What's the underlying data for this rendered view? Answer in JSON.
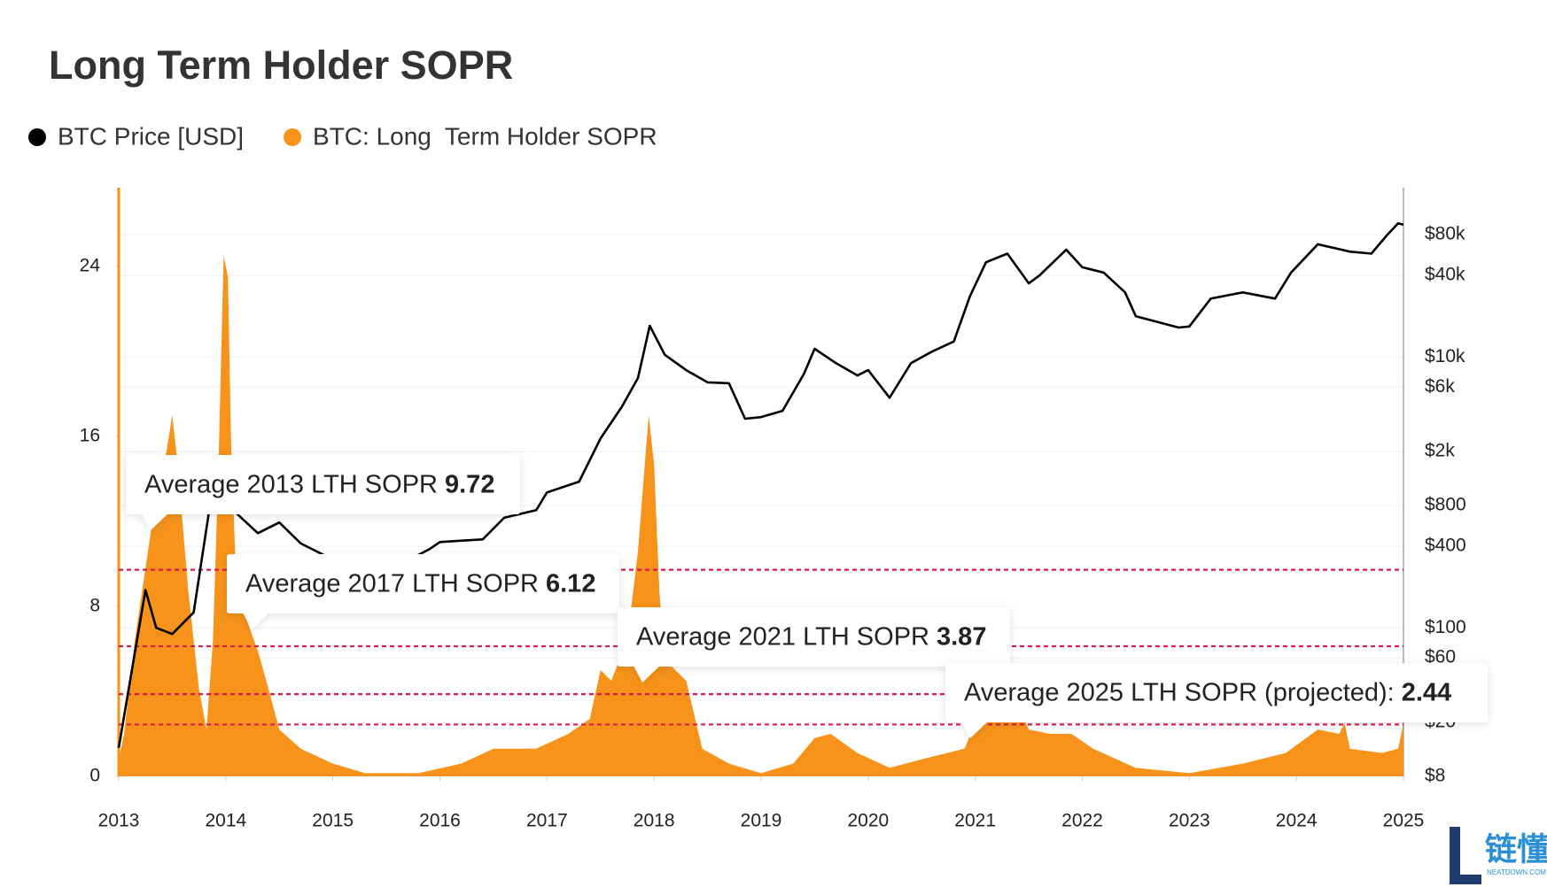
{
  "chart_data": {
    "type": "area-line",
    "title": "Long Term Holder SOPR",
    "xlim": [
      2013,
      2025
    ],
    "xticks": [
      2013,
      2014,
      2015,
      2016,
      2017,
      2018,
      2019,
      2020,
      2021,
      2022,
      2023,
      2024,
      2025
    ],
    "ylim": [
      0,
      27.7
    ],
    "yticks": [
      0,
      8,
      16,
      24
    ],
    "y2lim": [
      8,
      178000
    ],
    "y2log": true,
    "y2ticks": [
      {
        "value": 8,
        "label": "$8"
      },
      {
        "value": 20,
        "label": "$20"
      },
      {
        "value": 60,
        "label": "$60"
      },
      {
        "value": 100,
        "label": "$100"
      },
      {
        "value": 400,
        "label": "$400"
      },
      {
        "value": 800,
        "label": "$800"
      },
      {
        "value": 2000,
        "label": "$2k"
      },
      {
        "value": 6000,
        "label": "$6k"
      },
      {
        "value": 10000,
        "label": "$10k"
      },
      {
        "value": 40000,
        "label": "$40k"
      },
      {
        "value": 80000,
        "label": "$80k"
      }
    ],
    "grid": true,
    "series": [
      {
        "name": "BTC Price [USD]",
        "color": "#000000",
        "axis": "y2",
        "kind": "line",
        "x": [
          2013.0,
          2013.25,
          2013.35,
          2013.5,
          2013.7,
          2013.87,
          2013.95,
          2014.1,
          2014.3,
          2014.5,
          2014.7,
          2014.9,
          2015.1,
          2015.5,
          2015.9,
          2016.0,
          2016.4,
          2016.6,
          2016.9,
          2017.0,
          2017.3,
          2017.5,
          2017.7,
          2017.85,
          2017.96,
          2018.1,
          2018.3,
          2018.5,
          2018.7,
          2018.85,
          2019.0,
          2019.2,
          2019.4,
          2019.5,
          2019.7,
          2019.9,
          2020.0,
          2020.2,
          2020.4,
          2020.6,
          2020.8,
          2020.95,
          2021.1,
          2021.3,
          2021.5,
          2021.6,
          2021.85,
          2022.0,
          2022.2,
          2022.4,
          2022.5,
          2022.9,
          2023.0,
          2023.2,
          2023.5,
          2023.8,
          2023.95,
          2024.2,
          2024.5,
          2024.7,
          2024.85,
          2024.95,
          2025.0
        ],
        "values": [
          13,
          190,
          100,
          90,
          130,
          990,
          800,
          700,
          500,
          600,
          420,
          350,
          250,
          260,
          380,
          430,
          450,
          650,
          740,
          1000,
          1200,
          2500,
          4300,
          7000,
          17000,
          10400,
          8000,
          6500,
          6400,
          3500,
          3600,
          4000,
          7500,
          11500,
          9000,
          7300,
          8000,
          5000,
          9000,
          11000,
          13000,
          28000,
          50000,
          58000,
          35000,
          40000,
          62000,
          46000,
          42000,
          30000,
          20000,
          16500,
          16800,
          27000,
          30000,
          27000,
          42000,
          68000,
          60000,
          58000,
          80000,
          97000,
          95000
        ]
      },
      {
        "name": "BTC: Long  Term Holder SOPR",
        "color": "#f7931a",
        "kind": "area",
        "x": [
          2013.0,
          2013.05,
          2013.15,
          2013.3,
          2013.4,
          2013.45,
          2013.5,
          2013.55,
          2013.65,
          2013.75,
          2013.82,
          2013.88,
          2013.93,
          2013.98,
          2014.02,
          2014.05,
          2014.1,
          2014.2,
          2014.3,
          2014.4,
          2014.5,
          2014.7,
          2015.0,
          2015.3,
          2015.8,
          2016.2,
          2016.5,
          2016.9,
          2017.2,
          2017.4,
          2017.5,
          2017.6,
          2017.75,
          2017.85,
          2017.95,
          2018.0,
          2018.05,
          2018.1,
          2018.3,
          2018.45,
          2018.7,
          2019.0,
          2019.3,
          2019.5,
          2019.65,
          2019.9,
          2020.2,
          2020.5,
          2020.9,
          2021.0,
          2021.1,
          2021.3,
          2021.5,
          2021.7,
          2021.9,
          2022.1,
          2022.5,
          2023.0,
          2023.5,
          2023.9,
          2024.2,
          2024.4,
          2024.45,
          2024.5,
          2024.8,
          2024.95,
          2025.0
        ],
        "values": [
          0.8,
          2,
          6.4,
          11.5,
          14.2,
          15.4,
          17,
          14.7,
          8.7,
          4.1,
          2.2,
          6.4,
          14.3,
          24.5,
          23.5,
          15.6,
          8.7,
          7.3,
          5.9,
          4.1,
          2.2,
          1.3,
          0.6,
          0.15,
          0.15,
          0.6,
          1.3,
          1.3,
          2,
          2.7,
          5,
          4.5,
          6.4,
          10.6,
          17,
          14.7,
          8.7,
          5.5,
          4.5,
          1.3,
          0.6,
          0.15,
          0.6,
          1.8,
          2,
          1.1,
          0.4,
          0.8,
          1.3,
          2.5,
          4.1,
          4.5,
          2.2,
          2,
          2,
          1.3,
          0.4,
          0.15,
          0.6,
          1.1,
          2.2,
          2,
          2.5,
          1.3,
          1.1,
          1.3,
          2.5
        ]
      }
    ],
    "annotations": [
      {
        "text": "Average 2013 LTH SOPR",
        "value": 9.72,
        "line_color": "#d81b4a"
      },
      {
        "text": "Average 2017 LTH SOPR",
        "value": 6.12,
        "line_color": "#d81b4a"
      },
      {
        "text": "Average 2021 LTH SOPR",
        "value": 3.87,
        "line_color": "#d81b4a"
      },
      {
        "text": "Average 2025 LTH SOPR (projected):",
        "value": 2.44,
        "line_color": "#d81b4a"
      }
    ],
    "watermark": {
      "text": "链懂",
      "sub": "NEATDOWN.COM"
    }
  }
}
